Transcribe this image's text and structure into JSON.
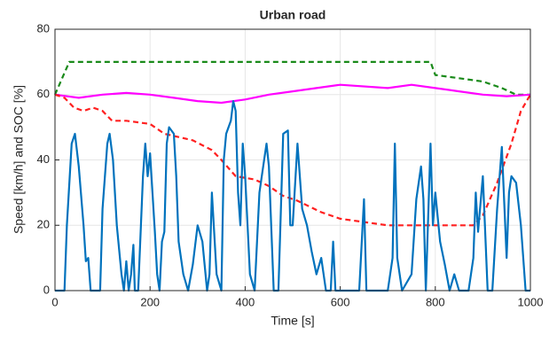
{
  "chart_data": {
    "type": "line",
    "title": "Urban road",
    "x_label": "Time [s]",
    "y_label": "Speed [km/h] and SOC [%]",
    "xlim": [
      0,
      1000
    ],
    "ylim": [
      0,
      80
    ],
    "xticks": [
      0,
      200,
      400,
      600,
      800,
      1000
    ],
    "yticks": [
      0,
      20,
      40,
      60,
      80
    ],
    "grid": true,
    "series": [
      {
        "color": "#1a8a1a",
        "line_style": "dashed",
        "x": [
          0,
          30,
          790,
          800,
          850,
          900,
          940,
          970,
          1000
        ],
        "values": [
          60,
          70,
          70,
          66,
          65,
          64,
          62,
          60,
          60
        ]
      },
      {
        "color": "#ff00ff",
        "line_style": "solid",
        "x": [
          0,
          50,
          100,
          150,
          200,
          250,
          300,
          350,
          400,
          450,
          500,
          550,
          600,
          700,
          750,
          800,
          850,
          900,
          950,
          1000
        ],
        "values": [
          60,
          59,
          60,
          60.5,
          60,
          59,
          58,
          57.5,
          58.5,
          60,
          61,
          62,
          63,
          62,
          63,
          62,
          61,
          60,
          59.5,
          60
        ]
      },
      {
        "color": "#ff2020",
        "line_style": "dashed",
        "x": [
          0,
          20,
          40,
          60,
          80,
          100,
          120,
          150,
          200,
          230,
          260,
          290,
          330,
          350,
          380,
          420,
          450,
          480,
          510,
          560,
          600,
          650,
          700,
          850,
          880,
          900,
          930,
          960,
          980,
          1000
        ],
        "values": [
          60,
          59,
          56,
          55,
          56,
          55,
          52,
          52,
          51,
          48,
          47,
          46,
          43,
          40,
          35,
          34,
          32,
          29,
          27.5,
          24,
          22,
          21,
          20,
          20,
          20,
          23,
          33,
          45,
          55,
          60
        ]
      },
      {
        "color": "#0072bd",
        "line_style": "solid",
        "x": [
          0,
          20,
          25,
          35,
          42,
          50,
          60,
          65,
          70,
          75,
          95,
          100,
          110,
          115,
          122,
          130,
          140,
          145,
          150,
          155,
          160,
          165,
          168,
          175,
          185,
          190,
          195,
          200,
          205,
          210,
          215,
          220,
          225,
          230,
          235,
          240,
          250,
          255,
          260,
          270,
          280,
          290,
          300,
          310,
          320,
          325,
          330,
          340,
          350,
          355,
          360,
          370,
          375,
          380,
          385,
          390,
          395,
          400,
          410,
          420,
          430,
          440,
          445,
          450,
          460,
          470,
          480,
          490,
          495,
          500,
          510,
          520,
          530,
          540,
          550,
          560,
          570,
          580,
          585,
          590,
          640,
          650,
          655,
          700,
          710,
          715,
          720,
          730,
          750,
          760,
          770,
          775,
          780,
          790,
          795,
          800,
          810,
          820,
          830,
          840,
          850,
          870,
          880,
          885,
          890,
          900,
          910,
          920,
          930,
          940,
          950,
          955,
          960,
          970,
          980,
          990,
          1000
        ],
        "values": [
          0,
          0,
          20,
          45,
          48,
          38,
          20,
          9,
          10,
          0,
          0,
          25,
          45,
          48,
          40,
          20,
          5,
          0,
          9,
          0,
          5,
          14,
          0,
          0,
          35,
          45,
          35,
          42,
          30,
          18,
          5,
          0,
          15,
          18,
          45,
          50,
          48,
          35,
          15,
          5,
          0,
          8,
          20,
          15,
          0,
          5,
          30,
          5,
          0,
          40,
          48,
          52,
          58,
          55,
          30,
          20,
          45,
          35,
          5,
          0,
          30,
          40,
          45,
          38,
          0,
          0,
          48,
          49,
          20,
          20,
          45,
          25,
          20,
          12,
          5,
          10,
          0,
          0,
          15,
          0,
          0,
          28,
          0,
          0,
          10,
          45,
          10,
          0,
          5,
          28,
          38,
          28,
          0,
          45,
          20,
          30,
          15,
          8,
          0,
          5,
          0,
          0,
          10,
          30,
          18,
          35,
          0,
          0,
          25,
          44,
          10,
          30,
          35,
          33,
          20,
          0,
          0
        ]
      }
    ]
  }
}
